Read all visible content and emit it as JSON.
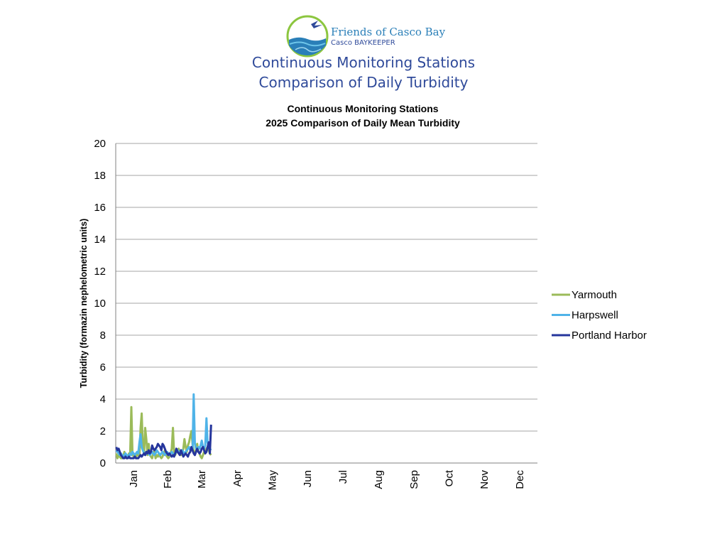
{
  "header": {
    "org_name": "Friends of Casco Bay",
    "org_sub": "Casco BAYKEEPER",
    "title_line1": "Continuous Monitoring Stations",
    "title_line2": "Comparison of Daily Turbidity"
  },
  "colors": {
    "Yarmouth": "#9bbb59",
    "Harpswell": "#4fb3e8",
    "Portland Harbor": "#25359c",
    "title_blue": "#2f4a9a"
  },
  "chart_data": {
    "type": "line",
    "title": "Continuous Monitoring Stations",
    "subtitle": "2025 Comparison of Daily Mean Turbidity",
    "ylabel": "Turbidity (formazin nephelometric units)",
    "xlabel": "",
    "ylim": [
      0,
      20
    ],
    "yticks": [
      0,
      2,
      4,
      6,
      8,
      10,
      12,
      14,
      16,
      18,
      20
    ],
    "months": [
      "Jan",
      "Feb",
      "Mar",
      "Apr",
      "May",
      "Jun",
      "Jul",
      "Aug",
      "Sep",
      "Oct",
      "Nov",
      "Dec"
    ],
    "x_unit": "day of year",
    "grid": true,
    "legend_position": "right",
    "series": [
      {
        "name": "Yarmouth",
        "color": "#9bbb59",
        "x": [
          1,
          2,
          3,
          4,
          5,
          6,
          7,
          8,
          9,
          10,
          11,
          12,
          13,
          14,
          15,
          16,
          17,
          18,
          19,
          20,
          21,
          22,
          23,
          24,
          25,
          26,
          27,
          28,
          29,
          30,
          31,
          32,
          33,
          34,
          35,
          36,
          37,
          38,
          39,
          40,
          41,
          42,
          43,
          44,
          45,
          46,
          47,
          48,
          49,
          50,
          51,
          52,
          53,
          54,
          55,
          56,
          57,
          58,
          59,
          60,
          61,
          62,
          63,
          64,
          65,
          66,
          67,
          68,
          69,
          70,
          71,
          72,
          73,
          74,
          75,
          76,
          77,
          78,
          79,
          80,
          81,
          82,
          83
        ],
        "values": [
          0.6,
          0.3,
          0.5,
          0.4,
          0.3,
          0.3,
          0.4,
          0.7,
          0.4,
          0.3,
          0.4,
          0.6,
          0.5,
          3.5,
          0.6,
          0.4,
          0.5,
          0.3,
          0.6,
          0.5,
          0.4,
          2.2,
          3.1,
          1.0,
          0.6,
          2.2,
          1.5,
          0.5,
          1.2,
          0.5,
          0.4,
          0.3,
          0.6,
          0.8,
          0.3,
          0.5,
          0.4,
          0.6,
          0.4,
          0.3,
          0.4,
          0.6,
          0.8,
          0.5,
          0.4,
          0.3,
          0.4,
          0.6,
          0.9,
          2.2,
          0.6,
          0.5,
          0.7,
          0.8,
          0.9,
          0.6,
          0.5,
          0.6,
          0.9,
          1.5,
          1.0,
          0.7,
          1.1,
          1.3,
          1.7,
          2.0,
          1.2,
          0.7,
          0.6,
          0.8,
          1.2,
          0.7,
          0.6,
          0.4,
          0.3,
          0.5,
          0.7,
          0.6,
          0.9,
          1.0,
          0.8,
          0.6,
          0.5
        ]
      },
      {
        "name": "Harpswell",
        "color": "#4fb3e8",
        "x": [
          1,
          2,
          3,
          4,
          5,
          6,
          7,
          8,
          9,
          10,
          11,
          12,
          13,
          14,
          15,
          16,
          17,
          18,
          19,
          20,
          21,
          22,
          23,
          24,
          25,
          26,
          27,
          28,
          29,
          30,
          31,
          32,
          33,
          34,
          35,
          36,
          37,
          38,
          39,
          40,
          41,
          42,
          43,
          44,
          45,
          46,
          47,
          48,
          49,
          50,
          51,
          52,
          53,
          54,
          55,
          56,
          57,
          58,
          59,
          60,
          61,
          62,
          63,
          64,
          65,
          66,
          67,
          68,
          69,
          70,
          71,
          72,
          73,
          74,
          75,
          76,
          77,
          78,
          79,
          80,
          81,
          82,
          83
        ],
        "values": [
          0.8,
          0.7,
          0.6,
          0.5,
          0.6,
          0.5,
          0.4,
          0.5,
          0.6,
          0.5,
          0.4,
          0.5,
          0.6,
          0.5,
          0.7,
          0.6,
          0.5,
          0.6,
          0.7,
          0.6,
          1.3,
          1.8,
          1.0,
          0.8,
          0.6,
          0.5,
          0.6,
          0.7,
          0.6,
          0.5,
          0.6,
          0.7,
          0.6,
          0.5,
          0.6,
          0.8,
          0.7,
          0.6,
          0.5,
          0.6,
          0.7,
          0.6,
          0.5,
          0.6,
          0.7,
          0.6,
          0.5,
          0.6,
          0.7,
          0.6,
          0.5,
          0.6,
          0.7,
          0.8,
          0.7,
          0.6,
          0.7,
          0.8,
          0.7,
          0.6,
          0.7,
          0.8,
          0.9,
          1.0,
          0.8,
          0.9,
          0.8,
          4.3,
          1.2,
          0.9,
          0.8,
          1.0,
          0.9,
          1.1,
          1.4,
          1.0,
          0.9,
          1.1,
          2.8,
          1.3,
          1.0,
          0.9,
          0.8
        ]
      },
      {
        "name": "Portland Harbor",
        "color": "#25359c",
        "x": [
          1,
          2,
          3,
          4,
          5,
          6,
          7,
          8,
          9,
          10,
          11,
          12,
          13,
          14,
          15,
          16,
          17,
          18,
          19,
          20,
          21,
          22,
          23,
          24,
          25,
          26,
          27,
          28,
          29,
          30,
          31,
          32,
          33,
          34,
          35,
          36,
          37,
          38,
          39,
          40,
          41,
          42,
          43,
          44,
          45,
          46,
          47,
          48,
          49,
          50,
          51,
          52,
          53,
          54,
          55,
          56,
          57,
          58,
          59,
          60,
          61,
          62,
          63,
          64,
          65,
          66,
          67,
          68,
          69,
          70,
          71,
          72,
          73,
          74,
          75,
          76,
          77,
          78,
          79,
          80,
          81,
          82,
          83
        ],
        "values": [
          1.0,
          0.8,
          0.9,
          0.7,
          0.5,
          0.4,
          0.3,
          0.3,
          0.4,
          0.3,
          0.3,
          0.4,
          0.3,
          0.3,
          0.3,
          0.3,
          0.4,
          0.3,
          0.3,
          0.3,
          0.4,
          0.5,
          0.4,
          0.5,
          0.6,
          0.5,
          0.7,
          0.6,
          0.8,
          0.6,
          0.7,
          1.1,
          0.9,
          0.8,
          0.9,
          1.0,
          1.2,
          1.1,
          1.0,
          0.8,
          1.2,
          1.1,
          0.9,
          0.7,
          0.6,
          0.5,
          0.6,
          0.5,
          0.4,
          0.5,
          0.4,
          0.6,
          0.9,
          0.7,
          0.6,
          0.5,
          0.8,
          0.6,
          0.4,
          0.5,
          0.6,
          0.5,
          0.4,
          0.6,
          0.7,
          1.0,
          0.8,
          0.6,
          0.5,
          0.7,
          0.9,
          0.7,
          0.6,
          0.7,
          0.9,
          1.0,
          0.8,
          0.6,
          0.7,
          1.0,
          1.3,
          0.6,
          2.4
        ]
      }
    ]
  }
}
